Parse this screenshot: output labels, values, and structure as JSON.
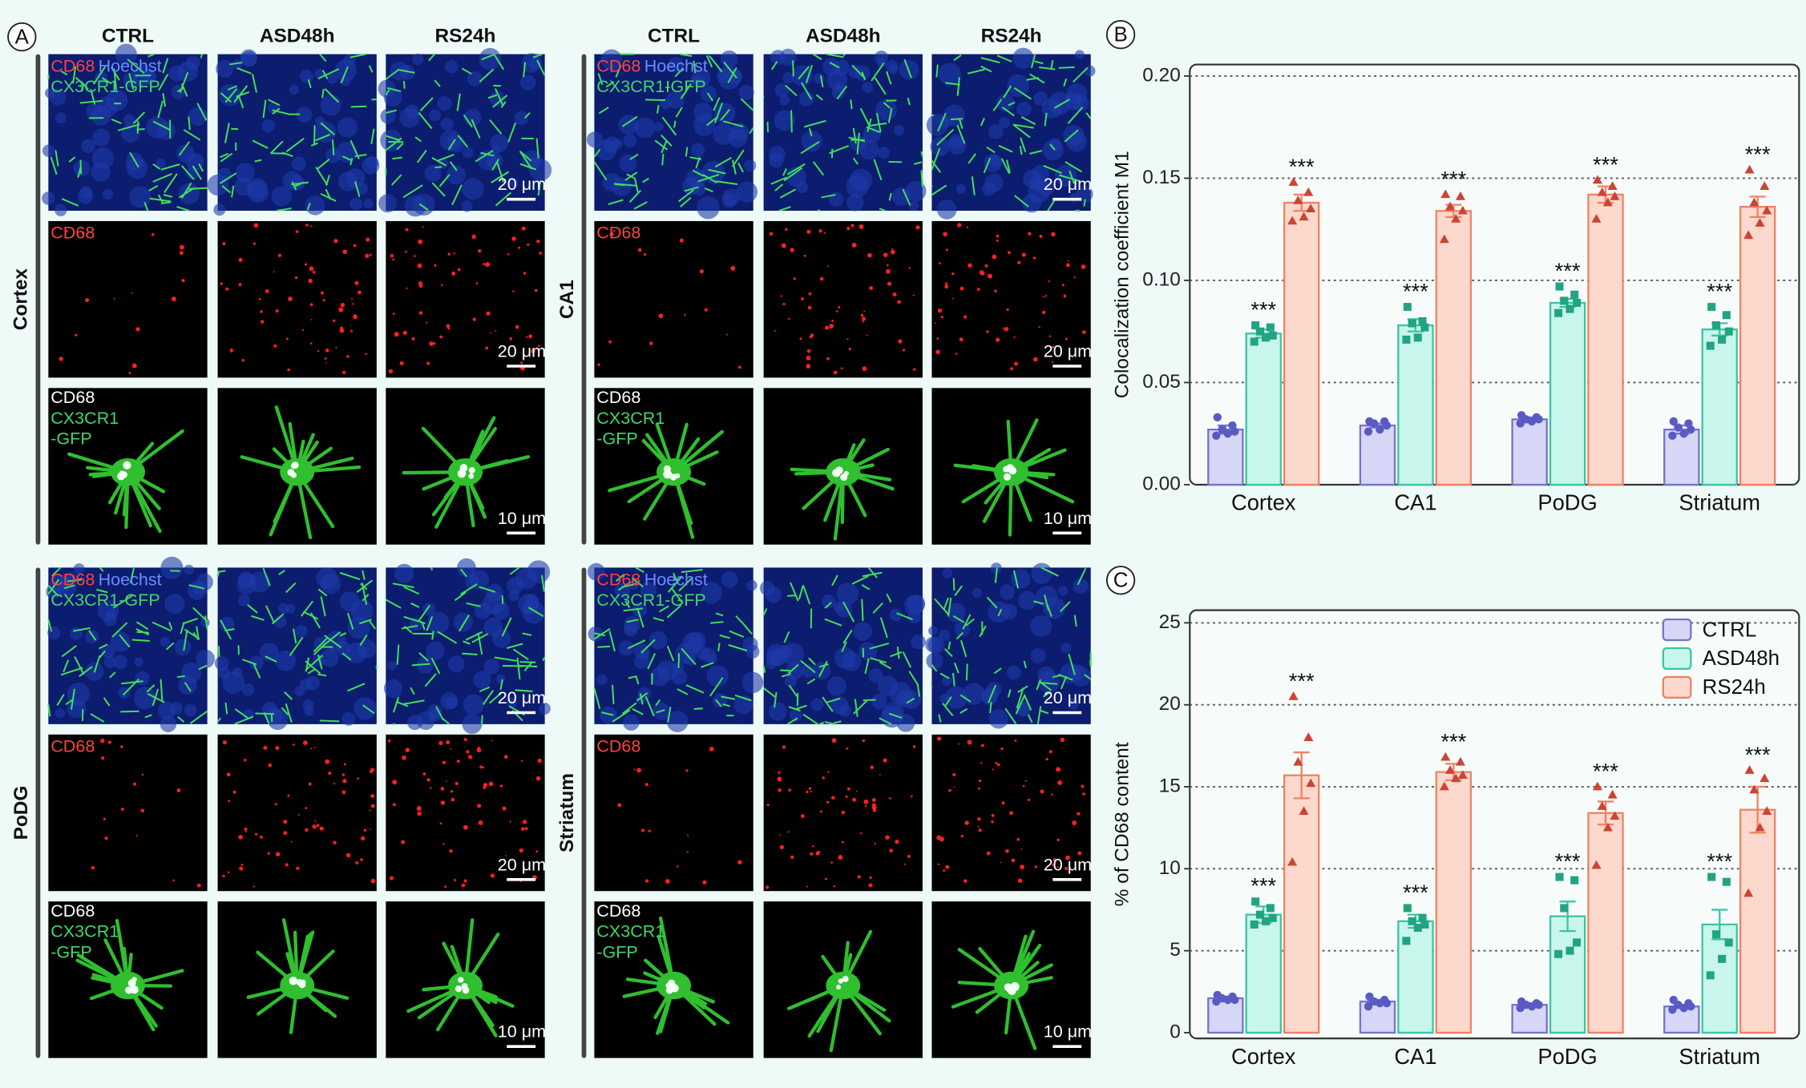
{
  "panel_a": {
    "label": "A",
    "columns": [
      "CTRL",
      "ASD48h",
      "RS24h"
    ],
    "regions": [
      {
        "name": "Cortex",
        "merge_labels": [
          "CD68",
          "Hoechst",
          "CX3CR1-GFP"
        ],
        "cd68_label": "CD68",
        "cell_labels": [
          "CD68",
          "CX3CR1",
          "-GFP"
        ],
        "scale_bars": [
          "20 μm",
          "20 μm",
          "10 μm"
        ]
      },
      {
        "name": "CA1",
        "merge_labels": [
          "CD68",
          "Hoechst",
          "CX3CR1-GFP"
        ],
        "cd68_label": "CD68",
        "cell_labels": [
          "CD68",
          "CX3CR1",
          "-GFP"
        ],
        "scale_bars": [
          "20 μm",
          "20 μm",
          "10 μm"
        ]
      },
      {
        "name": "PoDG",
        "merge_labels": [
          "CD68",
          "Hoechst",
          "CX3CR1-GFP"
        ],
        "cd68_label": "CD68",
        "cell_labels": [
          "CD68",
          "CX3CR1",
          "-GFP"
        ],
        "scale_bars": [
          "20 μm",
          "20 μm",
          "10 μm"
        ]
      },
      {
        "name": "Striatum",
        "merge_labels": [
          "CD68",
          "Hoechst",
          "CX3CR1-GFP"
        ],
        "cd68_label": "CD68",
        "cell_labels": [
          "CD68",
          "CX3CR1",
          "-GFP"
        ],
        "scale_bars": [
          "20 μm",
          "20 μm",
          "10 μm"
        ]
      }
    ]
  },
  "chart_data": [
    {
      "type": "bar",
      "label": "B",
      "y_label": "Colocalization coefficient M1",
      "categories": [
        "Cortex",
        "CA1",
        "PoDG",
        "Striatum"
      ],
      "ylim": [
        0,
        0.2
      ],
      "yticks": [
        {
          "value": 0,
          "label": "0.00"
        },
        0.05,
        {
          "value": 0.1,
          "label": "0.10"
        },
        0.15,
        {
          "value": 0.2,
          "label": "0.20"
        }
      ],
      "grid": true,
      "legend": false,
      "series": [
        {
          "name": "CTRL",
          "color": "#d6d6f6",
          "edge": "#7474cc",
          "marker": "circle",
          "marker_color": "#5a5ac4",
          "values": [
            0.027,
            0.029,
            0.032,
            0.027
          ],
          "errors": [
            0.002,
            0.001,
            0.001,
            0.002
          ],
          "points": [
            [
              0.033,
              0.029,
              0.027,
              0.026,
              0.025,
              0.024
            ],
            [
              0.031,
              0.031,
              0.03,
              0.029,
              0.027,
              0.026
            ],
            [
              0.034,
              0.033,
              0.032,
              0.032,
              0.031,
              0.03
            ],
            [
              0.031,
              0.03,
              0.028,
              0.027,
              0.025,
              0.024
            ]
          ]
        },
        {
          "name": "ASD48h",
          "color": "#c8f6ec",
          "edge": "#3cc4a4",
          "marker": "square",
          "marker_color": "#22a484",
          "values": [
            0.074,
            0.078,
            0.089,
            0.076
          ],
          "errors": [
            0.002,
            0.003,
            0.002,
            0.003
          ],
          "points": [
            [
              0.078,
              0.077,
              0.075,
              0.073,
              0.072,
              0.07
            ],
            [
              0.087,
              0.08,
              0.079,
              0.077,
              0.072,
              0.071
            ],
            [
              0.097,
              0.093,
              0.09,
              0.089,
              0.086,
              0.084
            ],
            [
              0.087,
              0.083,
              0.078,
              0.075,
              0.071,
              0.068
            ]
          ],
          "significance": [
            "***",
            "***",
            "***",
            "***"
          ]
        },
        {
          "name": "RS24h",
          "color": "#fdd9cd",
          "edge": "#f08262",
          "marker": "triangle",
          "marker_color": "#cc4432",
          "values": [
            0.138,
            0.134,
            0.142,
            0.136
          ],
          "errors": [
            0.004,
            0.003,
            0.004,
            0.005
          ],
          "points": [
            [
              0.148,
              0.143,
              0.139,
              0.135,
              0.131,
              0.129
            ],
            [
              0.142,
              0.141,
              0.136,
              0.134,
              0.13,
              0.12
            ],
            [
              0.149,
              0.146,
              0.143,
              0.141,
              0.138,
              0.13
            ],
            [
              0.154,
              0.146,
              0.138,
              0.134,
              0.128,
              0.122
            ]
          ],
          "significance": [
            "***",
            "***",
            "***",
            "***"
          ]
        }
      ]
    },
    {
      "type": "bar",
      "label": "C",
      "y_label": "% of CD68 content",
      "categories": [
        "Cortex",
        "CA1",
        "PoDG",
        "Striatum"
      ],
      "ylim": [
        0,
        25
      ],
      "yticks": [
        0,
        5,
        10,
        15,
        20,
        25
      ],
      "grid": true,
      "legend": "upper right",
      "series": [
        {
          "name": "CTRL",
          "color": "#d6d6f6",
          "edge": "#7474cc",
          "marker": "circle",
          "marker_color": "#5a5ac4",
          "values": [
            2.1,
            1.9,
            1.7,
            1.6
          ],
          "errors": [
            0.1,
            0.1,
            0.1,
            0.1
          ],
          "points": [
            [
              2.3,
              2.2,
              2.1,
              2.0,
              2.0,
              1.9
            ],
            [
              2.2,
              2.0,
              1.9,
              1.8,
              1.8,
              1.6
            ],
            [
              1.9,
              1.8,
              1.7,
              1.7,
              1.6,
              1.5
            ],
            [
              2.0,
              1.8,
              1.7,
              1.6,
              1.5,
              1.4
            ]
          ]
        },
        {
          "name": "ASD48h",
          "color": "#c8f6ec",
          "edge": "#3cc4a4",
          "marker": "square",
          "marker_color": "#22a484",
          "values": [
            7.2,
            6.8,
            7.1,
            6.6
          ],
          "errors": [
            0.5,
            0.4,
            0.9,
            0.9
          ],
          "points": [
            [
              8.0,
              7.6,
              7.2,
              7.0,
              6.8,
              6.6
            ],
            [
              7.6,
              7.0,
              6.8,
              6.6,
              6.4,
              5.6
            ],
            [
              9.5,
              9.3,
              7.6,
              5.5,
              5.0,
              4.8
            ],
            [
              9.5,
              9.2,
              6.0,
              5.5,
              4.5,
              3.5
            ]
          ],
          "significance": [
            "***",
            "***",
            "***",
            "***"
          ]
        },
        {
          "name": "RS24h",
          "color": "#fdd9cd",
          "edge": "#f08262",
          "marker": "triangle",
          "marker_color": "#cc4432",
          "values": [
            15.7,
            15.9,
            13.4,
            13.6
          ],
          "errors": [
            1.4,
            0.5,
            0.7,
            1.4
          ],
          "points": [
            [
              20.5,
              18.0,
              16.5,
              15.2,
              13.5,
              10.4
            ],
            [
              16.8,
              16.5,
              16.0,
              15.7,
              15.5,
              15.0
            ],
            [
              15.0,
              14.5,
              13.8,
              13.2,
              12.5,
              10.2
            ],
            [
              16.0,
              15.5,
              14.8,
              13.5,
              12.5,
              8.5
            ]
          ],
          "significance": [
            "***",
            "***",
            "***",
            "***"
          ]
        }
      ]
    }
  ]
}
